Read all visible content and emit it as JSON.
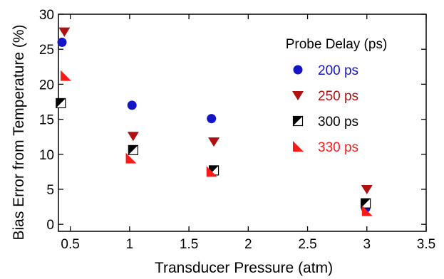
{
  "chart_data": {
    "type": "scatter",
    "xlabel": "Transducer Pressure (atm)",
    "ylabel": "Bias Error from Temperature (%)",
    "xlim": [
      0.4,
      3.5
    ],
    "ylim": [
      -1,
      30
    ],
    "xticks": [
      0.5,
      1,
      1.5,
      2,
      2.5,
      3,
      3.5
    ],
    "xtick_labels": [
      "0.5",
      "1",
      "1.5",
      "2",
      "2.5",
      "3",
      "3.5"
    ],
    "yticks": [
      0,
      5,
      10,
      15,
      20,
      25,
      30
    ],
    "ytick_labels": [
      "0",
      "5",
      "10",
      "15",
      "20",
      "25",
      "30"
    ],
    "grid": false,
    "legend": {
      "title": "Probe Delay (ps)",
      "placement": "top-right"
    },
    "series": [
      {
        "name": "200 ps",
        "marker": "circle",
        "color": "#1515c8",
        "x": [
          0.43,
          1.02,
          1.69,
          2.99
        ],
        "y": [
          26.0,
          17.0,
          15.1,
          2.3
        ]
      },
      {
        "name": "250 ps",
        "marker": "triangle-down",
        "color": "#b01010",
        "x": [
          0.45,
          1.03,
          1.71,
          3.0
        ],
        "y": [
          27.5,
          12.6,
          11.8,
          5.0
        ]
      },
      {
        "name": "300 ps",
        "marker": "half-square",
        "color": "#000000",
        "x": [
          0.42,
          1.03,
          1.71,
          2.99
        ],
        "y": [
          17.3,
          10.6,
          7.7,
          3.0
        ]
      },
      {
        "name": "330 ps",
        "marker": "triangle-corner",
        "color": "#ff1a1a",
        "x": [
          0.46,
          1.01,
          1.69,
          3.0
        ],
        "y": [
          21.2,
          9.4,
          7.5,
          1.9
        ]
      }
    ]
  }
}
